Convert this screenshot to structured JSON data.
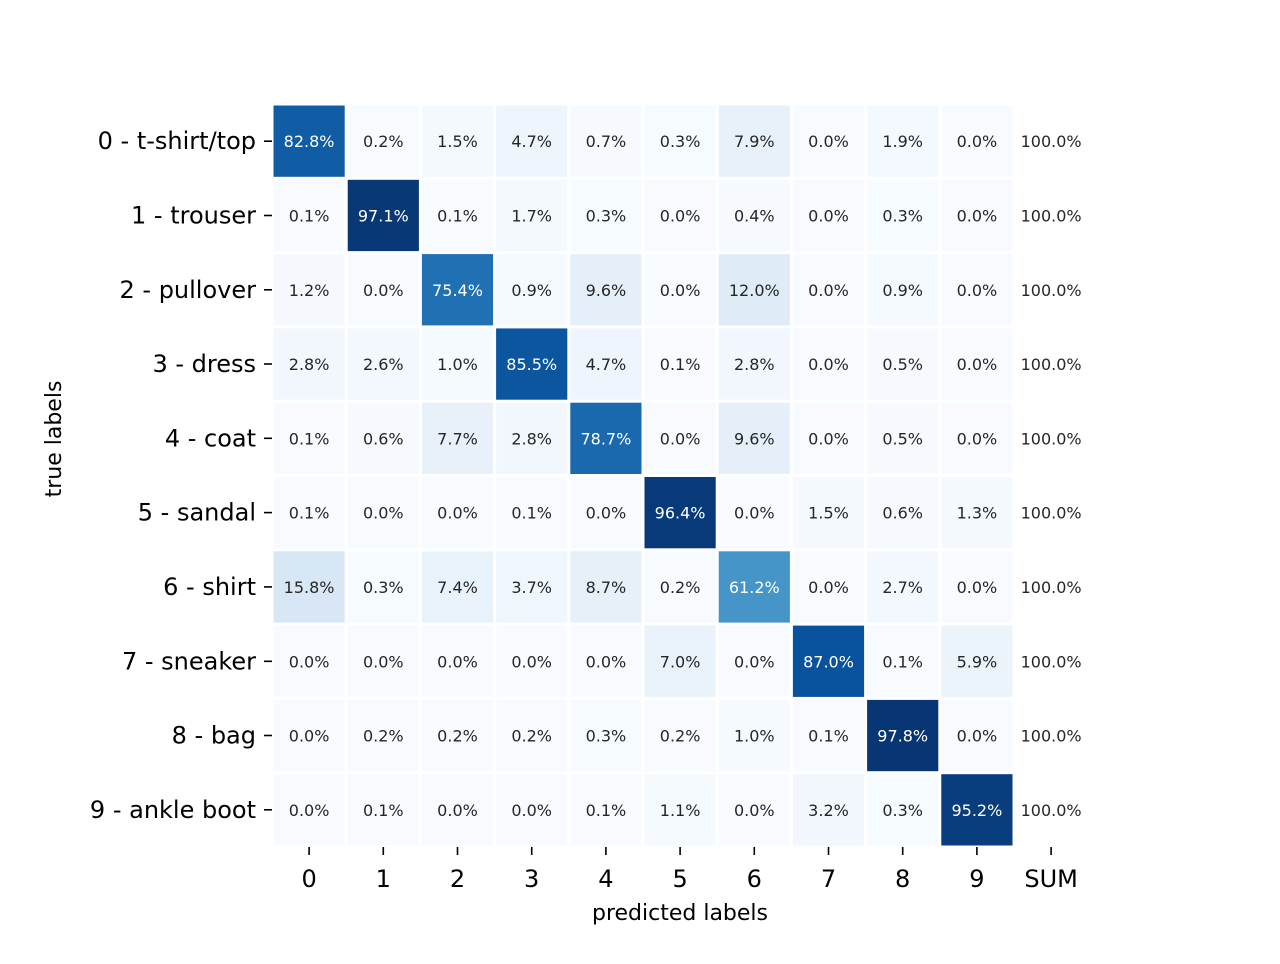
{
  "chart_data": {
    "type": "heatmap",
    "title": "",
    "xlabel": "predicted labels",
    "ylabel": "true labels",
    "x_categories": [
      "0",
      "1",
      "2",
      "3",
      "4",
      "5",
      "6",
      "7",
      "8",
      "9"
    ],
    "sum_label": "SUM",
    "y_categories": [
      "0 - t-shirt/top",
      "1 - trouser",
      "2 - pullover",
      "3 - dress",
      "4 - coat",
      "5 - sandal",
      "6 - shirt",
      "7 - sneaker",
      "8 - bag",
      "9 - ankle boot"
    ],
    "value_unit": "%",
    "colormap": "Blues",
    "vmin": 0,
    "vmax": 100,
    "colorbar": false,
    "values": [
      [
        82.8,
        0.2,
        1.5,
        4.7,
        0.7,
        0.3,
        7.9,
        0.0,
        1.9,
        0.0
      ],
      [
        0.1,
        97.1,
        0.1,
        1.7,
        0.3,
        0.0,
        0.4,
        0.0,
        0.3,
        0.0
      ],
      [
        1.2,
        0.0,
        75.4,
        0.9,
        9.6,
        0.0,
        12.0,
        0.0,
        0.9,
        0.0
      ],
      [
        2.8,
        2.6,
        1.0,
        85.5,
        4.7,
        0.1,
        2.8,
        0.0,
        0.5,
        0.0
      ],
      [
        0.1,
        0.6,
        7.7,
        2.8,
        78.7,
        0.0,
        9.6,
        0.0,
        0.5,
        0.0
      ],
      [
        0.1,
        0.0,
        0.0,
        0.1,
        0.0,
        96.4,
        0.0,
        1.5,
        0.6,
        1.3
      ],
      [
        15.8,
        0.3,
        7.4,
        3.7,
        8.7,
        0.2,
        61.2,
        0.0,
        2.7,
        0.0
      ],
      [
        0.0,
        0.0,
        0.0,
        0.0,
        0.0,
        7.0,
        0.0,
        87.0,
        0.1,
        5.9
      ],
      [
        0.0,
        0.2,
        0.2,
        0.2,
        0.3,
        0.2,
        1.0,
        0.1,
        97.8,
        0.0
      ],
      [
        0.0,
        0.1,
        0.0,
        0.0,
        0.1,
        1.1,
        0.0,
        3.2,
        0.3,
        95.2
      ]
    ],
    "row_sums": [
      100.0,
      100.0,
      100.0,
      100.0,
      100.0,
      100.0,
      100.0,
      100.0,
      100.0,
      100.0
    ]
  }
}
